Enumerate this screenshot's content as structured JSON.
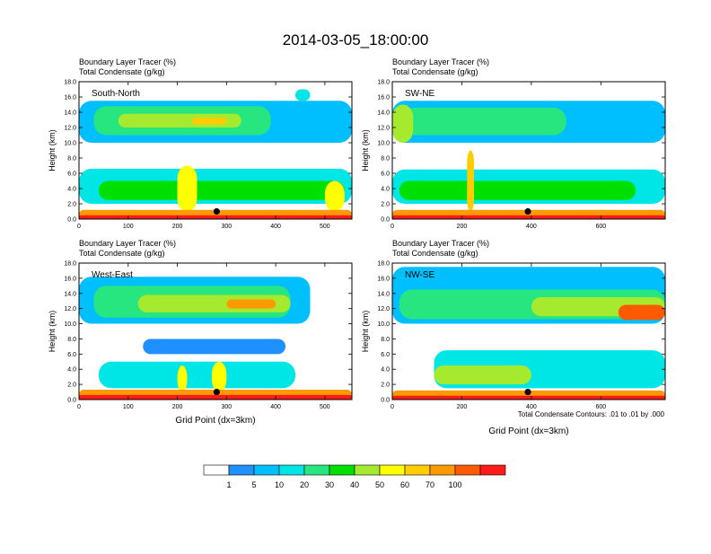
{
  "figure": {
    "title": "2014-03-05_18:00:00",
    "condensate_note": "Total Condensate Contours: .01 to .01 by .000"
  },
  "chart_data": [
    {
      "type": "heatmap",
      "panel_label": "South-North",
      "title_line1": "Boundary Layer Tracer   (%)",
      "title_line2": "Total Condensate   (g/kg)",
      "ylabel": "Height (km)",
      "xlabel": "",
      "x_ticks": [
        "0",
        "100",
        "200",
        "300",
        "400",
        "500"
      ],
      "y_ticks": [
        "0.0",
        "2.0",
        "4.0",
        "6.0",
        "8.0",
        "10.0",
        "12.0",
        "14.0",
        "16.0",
        "18.0"
      ],
      "xlim": [
        0,
        555
      ],
      "ylim": [
        0,
        18
      ],
      "marker": {
        "x": 280,
        "y": 1.0
      }
    },
    {
      "type": "heatmap",
      "panel_label": "SW-NE",
      "title_line1": "Boundary Layer Tracer   (%)",
      "title_line2": "Total Condensate   (g/kg)",
      "ylabel": "Height (km)",
      "xlabel": "",
      "x_ticks": [
        "0",
        "200",
        "400",
        "600"
      ],
      "y_ticks": [
        "0.0",
        "2.0",
        "4.0",
        "6.0",
        "8.0",
        "10.0",
        "12.0",
        "14.0",
        "16.0",
        "18.0"
      ],
      "xlim": [
        0,
        785
      ],
      "ylim": [
        0,
        18
      ],
      "marker": {
        "x": 390,
        "y": 1.0
      }
    },
    {
      "type": "heatmap",
      "panel_label": "West-East",
      "title_line1": "Boundary Layer Tracer   (%)",
      "title_line2": "Total Condensate   (g/kg)",
      "ylabel": "Height (km)",
      "xlabel": "Grid Point (dx=3km)",
      "x_ticks": [
        "0",
        "100",
        "200",
        "300",
        "400",
        "500"
      ],
      "y_ticks": [
        "0.0",
        "2.0",
        "4.0",
        "6.0",
        "8.0",
        "10.0",
        "12.0",
        "14.0",
        "16.0",
        "18.0"
      ],
      "xlim": [
        0,
        555
      ],
      "ylim": [
        0,
        18
      ],
      "marker": {
        "x": 280,
        "y": 1.0
      }
    },
    {
      "type": "heatmap",
      "panel_label": "NW-SE",
      "title_line1": "Boundary Layer Tracer   (%)",
      "title_line2": "Total Condensate   (g/kg)",
      "ylabel": "Height (km)",
      "xlabel": "Grid Point (dx=3km)",
      "x_ticks": [
        "0",
        "200",
        "400",
        "600"
      ],
      "y_ticks": [
        "0.0",
        "2.0",
        "4.0",
        "6.0",
        "8.0",
        "10.0",
        "12.0",
        "14.0",
        "16.0",
        "18.0"
      ],
      "xlim": [
        0,
        785
      ],
      "ylim": [
        0,
        18
      ],
      "marker": {
        "x": 390,
        "y": 1.0
      }
    }
  ],
  "colorbar": {
    "labels": [
      "1",
      "5",
      "10",
      "20",
      "30",
      "40",
      "50",
      "60",
      "70",
      "100"
    ],
    "colors": [
      "#ffffff",
      "#1e90ff",
      "#00bfff",
      "#00e5e5",
      "#27e67f",
      "#00e000",
      "#a6ea30",
      "#ffff00",
      "#ffcc00",
      "#ff9900",
      "#ff5a00",
      "#ff1a1a"
    ]
  }
}
